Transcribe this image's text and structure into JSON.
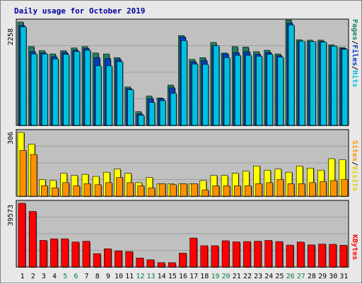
{
  "title": "Daily usage for October 2019",
  "colors": {
    "hits": "#00c0e0",
    "files": "#0040c0",
    "pages": "#208060",
    "visits": "#ffff00",
    "sites": "#ff9000",
    "kbytes": "#ff0000",
    "weekend_label": "#008040",
    "plot_bg": "#c0c0c0",
    "grid": "#a0a0a0"
  },
  "legend": {
    "top": {
      "pages": "Pages",
      "sep1": "/",
      "files": "Files",
      "sep2": "/",
      "hits": "Hits"
    },
    "middle": {
      "sites": "Sites",
      "sep": "/",
      "visits": "Visits"
    },
    "bottom": {
      "kbytes": "KBytes"
    }
  },
  "chart_data": [
    {
      "type": "bar",
      "panel": "hits-files-pages",
      "y_axis_label": "2258",
      "ylim": [
        0,
        2258
      ],
      "categories": [
        "1",
        "2",
        "3",
        "4",
        "5",
        "6",
        "7",
        "8",
        "9",
        "10",
        "11",
        "12",
        "13",
        "14",
        "15",
        "16",
        "17",
        "18",
        "19",
        "20",
        "21",
        "22",
        "23",
        "24",
        "25",
        "26",
        "27",
        "28",
        "29",
        "30",
        "31"
      ],
      "series": [
        {
          "name": "Pages",
          "values": [
            2258,
            1720,
            1630,
            1560,
            1630,
            1690,
            1720,
            1580,
            1560,
            1480,
            840,
            300,
            640,
            600,
            880,
            1960,
            1440,
            1480,
            1810,
            1580,
            1720,
            1710,
            1610,
            1640,
            1560,
            2300,
            1870,
            1860,
            1860,
            1760,
            1700
          ]
        },
        {
          "name": "Files",
          "values": [
            2180,
            1610,
            1580,
            1500,
            1590,
            1640,
            1680,
            1480,
            1460,
            1440,
            800,
            250,
            580,
            580,
            820,
            1930,
            1390,
            1420,
            1740,
            1560,
            1590,
            1610,
            1550,
            1590,
            1520,
            2230,
            1840,
            1830,
            1830,
            1730,
            1680
          ]
        },
        {
          "name": "Hits",
          "values": [
            2150,
            1560,
            1560,
            1450,
            1550,
            1610,
            1640,
            1300,
            1300,
            1390,
            780,
            220,
            500,
            540,
            700,
            1850,
            1340,
            1330,
            1740,
            1480,
            1530,
            1530,
            1510,
            1550,
            1490,
            2190,
            1840,
            1830,
            1820,
            1730,
            1660
          ]
        }
      ],
      "grid": true
    },
    {
      "type": "bar",
      "panel": "visits-sites",
      "y_axis_label": "306",
      "ylim": [
        0,
        306
      ],
      "categories": [
        "1",
        "2",
        "3",
        "4",
        "5",
        "6",
        "7",
        "8",
        "9",
        "10",
        "11",
        "12",
        "13",
        "14",
        "15",
        "16",
        "17",
        "18",
        "19",
        "20",
        "21",
        "22",
        "23",
        "24",
        "25",
        "26",
        "27",
        "28",
        "29",
        "30",
        "31"
      ],
      "series": [
        {
          "name": "Visits",
          "values": [
            306,
            250,
            80,
            75,
            110,
            100,
            105,
            95,
            115,
            130,
            110,
            65,
            90,
            60,
            60,
            60,
            60,
            75,
            100,
            100,
            110,
            120,
            145,
            125,
            130,
            115,
            145,
            135,
            125,
            180,
            175
          ]
        },
        {
          "name": "Sites",
          "values": [
            220,
            200,
            50,
            40,
            65,
            50,
            60,
            55,
            65,
            90,
            65,
            50,
            40,
            60,
            55,
            60,
            60,
            30,
            50,
            50,
            50,
            50,
            60,
            65,
            80,
            60,
            60,
            65,
            70,
            75,
            80
          ]
        }
      ],
      "grid": true
    },
    {
      "type": "bar",
      "panel": "kbytes",
      "y_axis_label": "39573",
      "ylim": [
        0,
        39573
      ],
      "categories": [
        "1",
        "2",
        "3",
        "4",
        "5",
        "6",
        "7",
        "8",
        "9",
        "10",
        "11",
        "12",
        "13",
        "14",
        "15",
        "16",
        "17",
        "18",
        "19",
        "20",
        "21",
        "22",
        "23",
        "24",
        "25",
        "26",
        "27",
        "28",
        "29",
        "30",
        "31"
      ],
      "series": [
        {
          "name": "KBytes",
          "values": [
            39573,
            34500,
            16500,
            17500,
            17500,
            15500,
            16000,
            8300,
            11300,
            10000,
            9600,
            5600,
            4500,
            2700,
            2700,
            8600,
            18000,
            13200,
            13200,
            16300,
            15600,
            15800,
            16000,
            16500,
            15800,
            13600,
            15500,
            13700,
            14200,
            14100,
            13500
          ]
        }
      ],
      "grid": true
    }
  ],
  "x_labels": [
    {
      "d": "1",
      "weekend": false
    },
    {
      "d": "2",
      "weekend": false
    },
    {
      "d": "3",
      "weekend": false
    },
    {
      "d": "4",
      "weekend": false
    },
    {
      "d": "5",
      "weekend": true
    },
    {
      "d": "6",
      "weekend": true
    },
    {
      "d": "7",
      "weekend": false
    },
    {
      "d": "8",
      "weekend": false
    },
    {
      "d": "9",
      "weekend": false
    },
    {
      "d": "10",
      "weekend": false
    },
    {
      "d": "11",
      "weekend": false
    },
    {
      "d": "12",
      "weekend": true
    },
    {
      "d": "13",
      "weekend": true
    },
    {
      "d": "14",
      "weekend": false
    },
    {
      "d": "15",
      "weekend": false
    },
    {
      "d": "16",
      "weekend": false
    },
    {
      "d": "17",
      "weekend": false
    },
    {
      "d": "18",
      "weekend": false
    },
    {
      "d": "19",
      "weekend": true
    },
    {
      "d": "20",
      "weekend": true
    },
    {
      "d": "21",
      "weekend": false
    },
    {
      "d": "22",
      "weekend": false
    },
    {
      "d": "23",
      "weekend": false
    },
    {
      "d": "24",
      "weekend": false
    },
    {
      "d": "25",
      "weekend": false
    },
    {
      "d": "26",
      "weekend": true
    },
    {
      "d": "27",
      "weekend": true
    },
    {
      "d": "28",
      "weekend": false
    },
    {
      "d": "29",
      "weekend": false
    },
    {
      "d": "30",
      "weekend": false
    },
    {
      "d": "31",
      "weekend": false
    }
  ]
}
